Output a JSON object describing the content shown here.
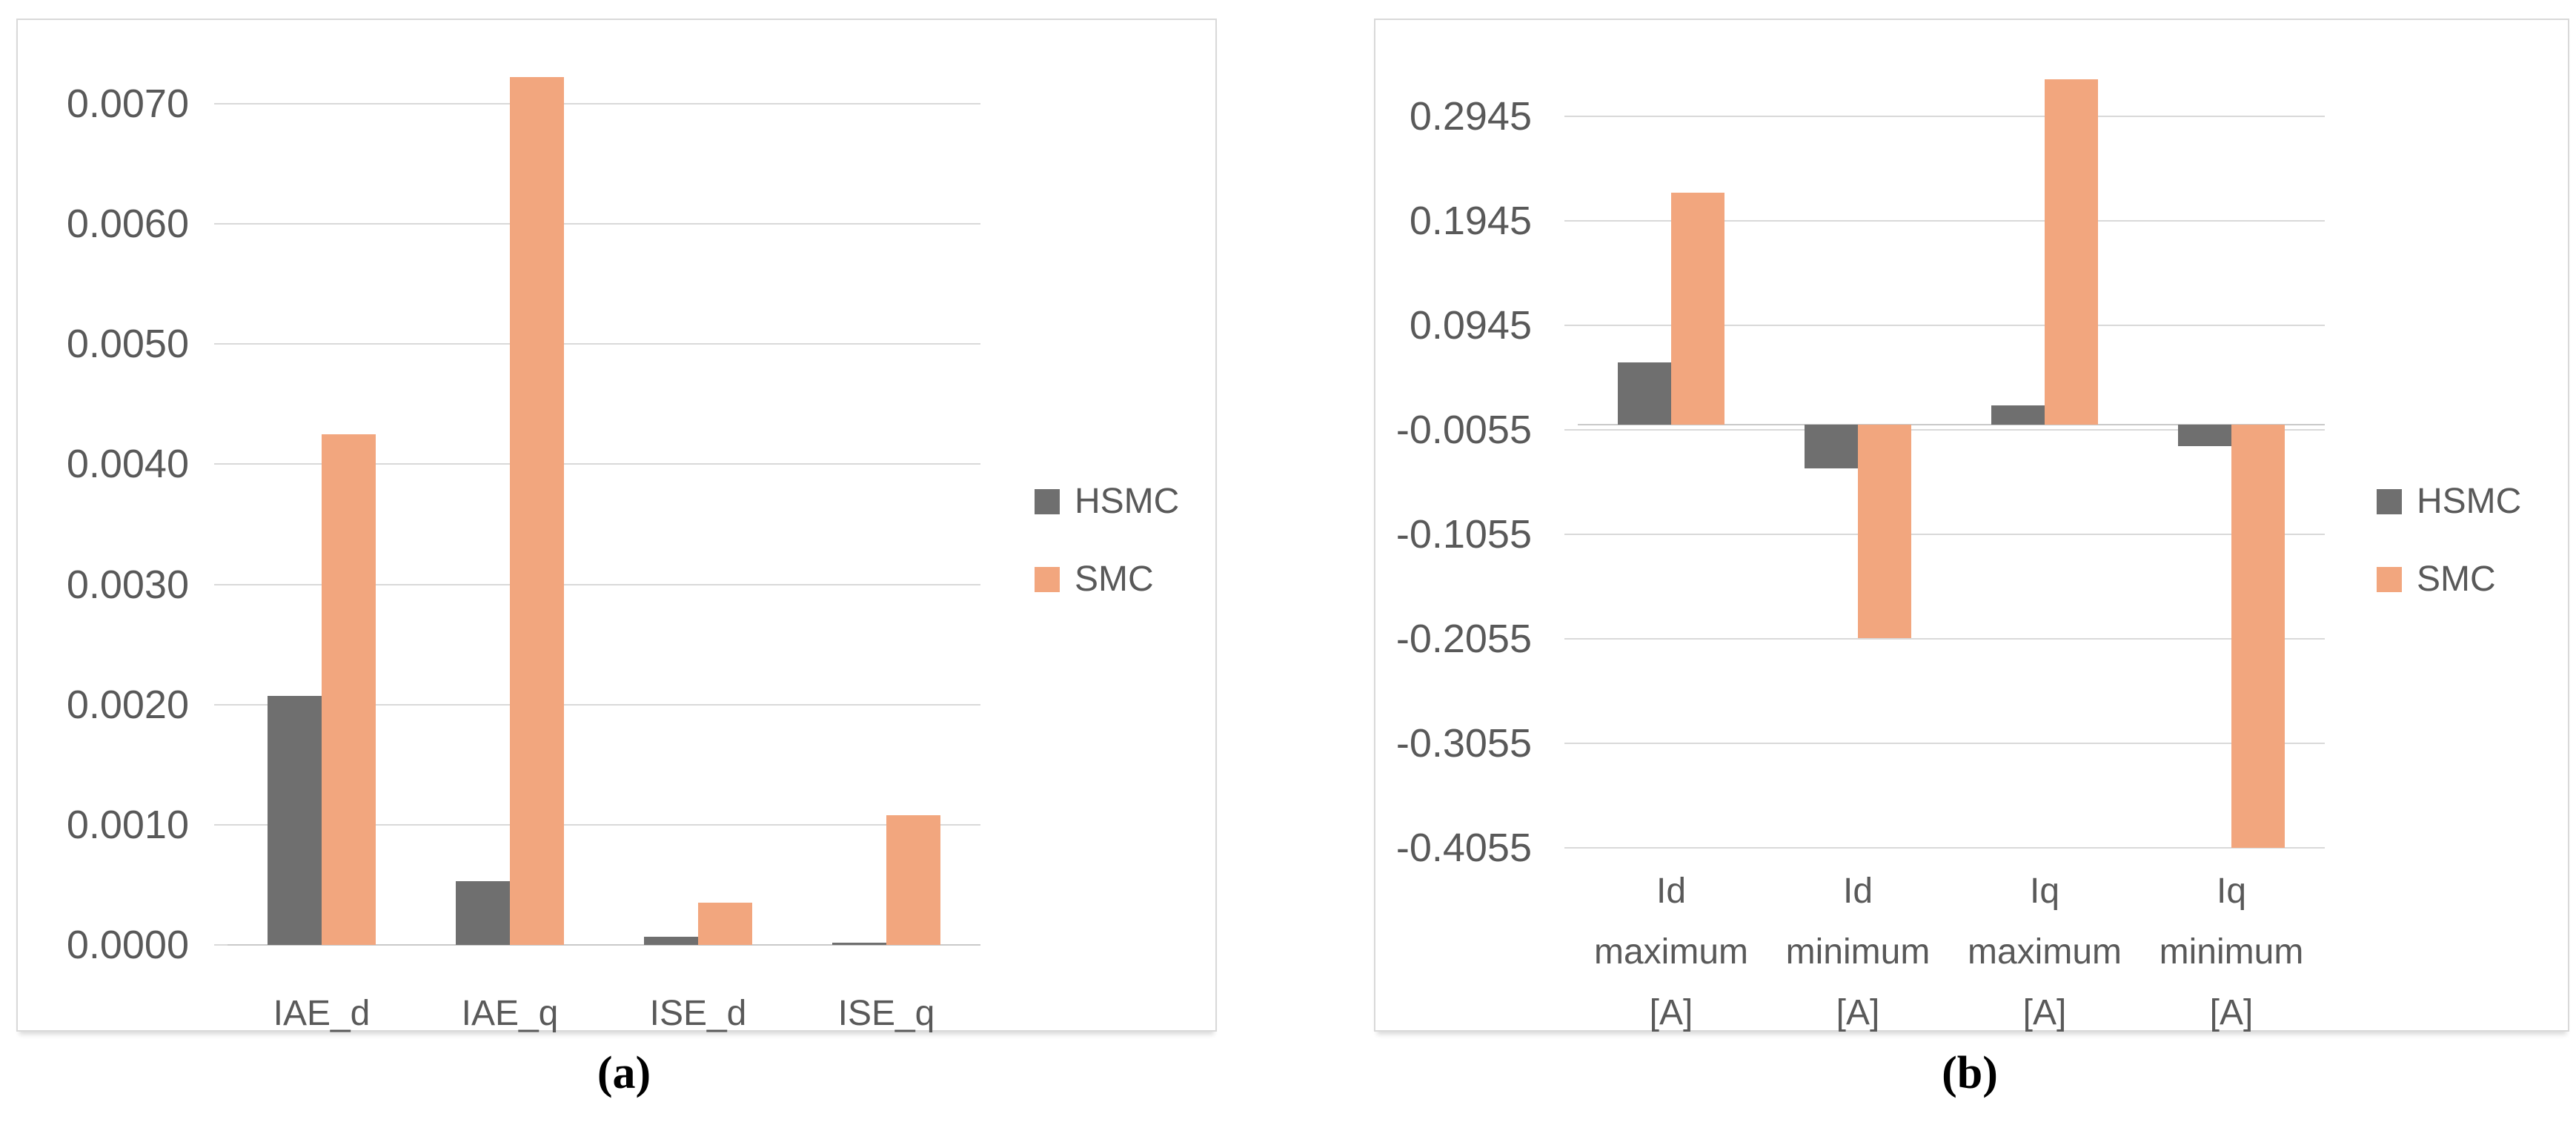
{
  "colors": {
    "hsmc": "#6F6F6F",
    "smc": "#F2A67E",
    "grid": "#D9D9D9",
    "axis": "#C9C9C9",
    "text": "#595959",
    "panel_border": "#D9D9D9"
  },
  "chart_data": [
    {
      "id": "a",
      "type": "bar",
      "caption": "(a)",
      "title": "",
      "xlabel": "",
      "ylabel": "",
      "grid": true,
      "legend_position": "right-inside",
      "categories": [
        "IAE_d",
        "IAE_q",
        "ISE_d",
        "ISE_q"
      ],
      "series": [
        {
          "name": "HSMC",
          "color": "#6F6F6F",
          "values": [
            0.00207,
            0.00053,
            7e-05,
            2e-05
          ]
        },
        {
          "name": "SMC",
          "color": "#F2A67E",
          "values": [
            0.00425,
            0.00722,
            0.00035,
            0.00108
          ]
        }
      ],
      "ylim": [
        0.0,
        0.0075
      ],
      "yticks": [
        0.0,
        0.001,
        0.002,
        0.003,
        0.004,
        0.005,
        0.006,
        0.007
      ],
      "ytick_labels": [
        "0.0000",
        "0.0010",
        "0.0020",
        "0.0030",
        "0.0040",
        "0.0050",
        "0.0060",
        "0.0070"
      ]
    },
    {
      "id": "b",
      "type": "bar",
      "caption": "(b)",
      "title": "",
      "xlabel": "",
      "ylabel": "",
      "grid": true,
      "legend_position": "right-inside",
      "categories": [
        [
          "Id",
          "maximum",
          "[A]"
        ],
        [
          "Id",
          "minimum",
          "[A]"
        ],
        [
          "Iq",
          "maximum",
          "[A]"
        ],
        [
          "Iq",
          "minimum",
          "[A]"
        ]
      ],
      "series": [
        {
          "name": "HSMC",
          "color": "#6F6F6F",
          "values": [
            0.059,
            -0.042,
            0.018,
            -0.021
          ]
        },
        {
          "name": "SMC",
          "color": "#F2A67E",
          "values": [
            0.222,
            -0.205,
            0.33,
            -0.4055
          ]
        }
      ],
      "ylim": [
        -0.4055,
        0.3445
      ],
      "yticks": [
        0.2945,
        0.1945,
        0.0945,
        -0.0055,
        -0.1055,
        -0.2055,
        -0.3055,
        -0.4055
      ],
      "ytick_labels": [
        "0.2945",
        "0.1945",
        "0.0945",
        "-0.0055",
        "-0.1055",
        "-0.2055",
        "-0.3055",
        "-0.4055"
      ]
    }
  ]
}
